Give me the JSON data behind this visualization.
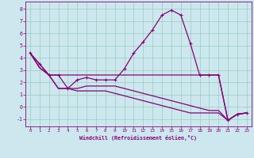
{
  "xlabel": "Windchill (Refroidissement éolien,°C)",
  "background_color": "#cce8ee",
  "grid_color": "#99ccbb",
  "line_color": "#880077",
  "xlim": [
    -0.5,
    23.5
  ],
  "ylim": [
    -1.6,
    8.6
  ],
  "xticks": [
    0,
    1,
    2,
    3,
    4,
    5,
    6,
    7,
    8,
    9,
    10,
    11,
    12,
    13,
    14,
    15,
    16,
    17,
    18,
    19,
    20,
    21,
    22,
    23
  ],
  "yticks": [
    -1,
    0,
    1,
    2,
    3,
    4,
    5,
    6,
    7,
    8
  ],
  "series1_x": [
    0,
    1,
    2,
    3,
    4,
    5,
    6,
    7,
    8,
    9,
    10,
    11,
    12,
    13,
    14,
    15,
    16,
    17,
    18,
    19,
    20,
    21,
    22,
    23
  ],
  "series1_y": [
    4.4,
    3.5,
    2.6,
    2.6,
    1.5,
    2.2,
    2.4,
    2.2,
    2.2,
    2.2,
    3.1,
    4.4,
    5.3,
    6.3,
    7.5,
    7.9,
    7.5,
    5.2,
    2.6,
    2.6,
    2.6,
    -1.1,
    -0.6,
    -0.5
  ],
  "series2_x": [
    0,
    1,
    2,
    3,
    4,
    5,
    6,
    7,
    8,
    9,
    10,
    11,
    12,
    13,
    14,
    15,
    16,
    17,
    18,
    19,
    20,
    21,
    22,
    23
  ],
  "series2_y": [
    4.4,
    3.5,
    2.6,
    2.6,
    2.6,
    2.6,
    2.6,
    2.6,
    2.6,
    2.6,
    2.6,
    2.6,
    2.6,
    2.6,
    2.6,
    2.6,
    2.6,
    2.6,
    2.6,
    2.6,
    2.6,
    -1.1,
    -0.6,
    -0.5
  ],
  "series3_x": [
    0,
    1,
    2,
    3,
    4,
    5,
    6,
    7,
    8,
    9,
    10,
    11,
    12,
    13,
    14,
    15,
    16,
    17,
    18,
    19,
    20,
    21,
    22,
    23
  ],
  "series3_y": [
    4.4,
    3.2,
    2.6,
    1.5,
    1.5,
    1.5,
    1.7,
    1.7,
    1.7,
    1.7,
    1.5,
    1.3,
    1.1,
    0.9,
    0.7,
    0.5,
    0.3,
    0.1,
    -0.1,
    -0.3,
    -0.3,
    -1.1,
    -0.6,
    -0.5
  ],
  "series4_x": [
    0,
    1,
    2,
    3,
    4,
    5,
    6,
    7,
    8,
    9,
    10,
    11,
    12,
    13,
    14,
    15,
    16,
    17,
    18,
    19,
    20,
    21,
    22,
    23
  ],
  "series4_y": [
    4.4,
    3.2,
    2.6,
    1.5,
    1.5,
    1.3,
    1.3,
    1.3,
    1.3,
    1.1,
    0.9,
    0.7,
    0.5,
    0.3,
    0.1,
    -0.1,
    -0.3,
    -0.5,
    -0.5,
    -0.5,
    -0.5,
    -1.1,
    -0.6,
    -0.5
  ]
}
